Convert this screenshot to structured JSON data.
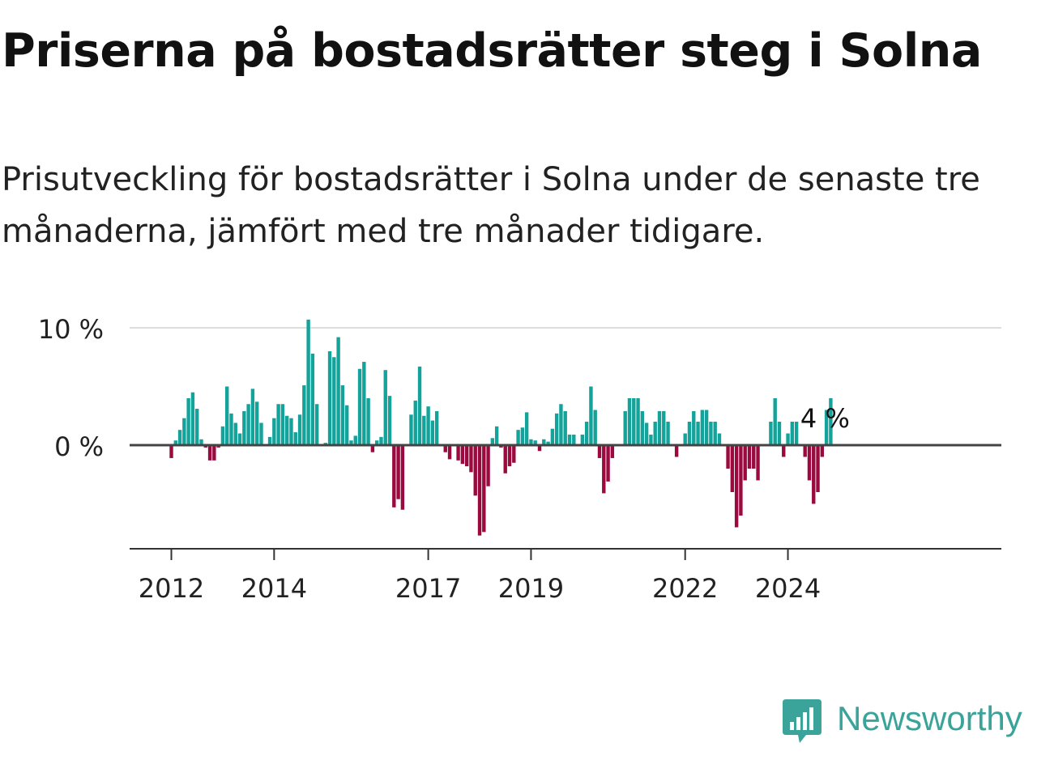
{
  "title": "Priserna på bostadsrätter steg i Solna",
  "subtitle": "Prisutveckling för bostadsrätter i Solna under de senaste tre månaderna, jämfört med tre månader tidigare.",
  "brand": "Newsworthy",
  "colors": {
    "positive": "#14a39a",
    "negative": "#9b0a3f",
    "grid": "#dddddd",
    "axis": "#444444",
    "brand": "#3aa39a"
  },
  "chart_data": {
    "type": "bar",
    "title": "Priserna på bostadsrätter steg i Solna",
    "xlabel": "",
    "ylabel": "",
    "unit": "%",
    "start": "2011-09",
    "ylim": [
      -8.8,
      10
    ],
    "y_ticks": [
      0,
      10
    ],
    "y_tick_labels": [
      "0 %",
      "10 %"
    ],
    "x_ticks": [
      {
        "index": 4,
        "label": "2012"
      },
      {
        "index": 28,
        "label": "2014"
      },
      {
        "index": 64,
        "label": "2017"
      },
      {
        "index": 88,
        "label": "2019"
      },
      {
        "index": 124,
        "label": "2022"
      },
      {
        "index": 148,
        "label": "2024"
      }
    ],
    "annotation": {
      "index": 151,
      "label": "4 %"
    },
    "values": [
      0,
      0,
      0,
      0,
      -1.1,
      0.4,
      1.3,
      2.3,
      4,
      4.5,
      3.1,
      0.5,
      -0.2,
      -1.3,
      -1.3,
      -0.2,
      1.6,
      5,
      2.7,
      1.9,
      1,
      2.9,
      3.5,
      4.8,
      3.7,
      1.9,
      0,
      0.7,
      2.3,
      3.5,
      3.5,
      2.5,
      2.3,
      1.1,
      2.6,
      5.1,
      10.7,
      7.8,
      3.5,
      0,
      0.2,
      8,
      7.5,
      9.2,
      5.1,
      3.4,
      0.4,
      0.8,
      6.5,
      7.1,
      4,
      -0.6,
      0.4,
      0.7,
      6.4,
      4.2,
      -5.3,
      -4.6,
      -5.5,
      0,
      2.6,
      3.8,
      6.7,
      2.5,
      3.3,
      2.1,
      2.9,
      0,
      -0.6,
      -1.2,
      0.1,
      -1.3,
      -1.6,
      -1.8,
      -2.3,
      -4.3,
      -7.7,
      -7.4,
      -3.5,
      0.6,
      1.6,
      -0.2,
      -2.4,
      -1.8,
      -1.5,
      1.3,
      1.5,
      2.8,
      0.5,
      0.4,
      -0.5,
      0.5,
      0.3,
      1.4,
      2.7,
      3.5,
      2.9,
      0.9,
      0.9,
      0,
      0.9,
      2,
      5,
      3,
      -1.1,
      -4.1,
      -3.1,
      -1.1,
      0,
      0,
      2.9,
      4,
      4,
      4,
      2.9,
      1.9,
      0.9,
      2,
      2.9,
      2.9,
      2,
      0,
      -1,
      0,
      1,
      2,
      2.9,
      2,
      3,
      3,
      2,
      2,
      1,
      0,
      -2,
      -4,
      -7,
      -6,
      -3,
      -2,
      -2,
      -3,
      0,
      0,
      2,
      4,
      2,
      -1,
      1,
      2,
      2,
      0,
      -1,
      -3,
      -5,
      -4,
      -1,
      3,
      4
    ]
  }
}
